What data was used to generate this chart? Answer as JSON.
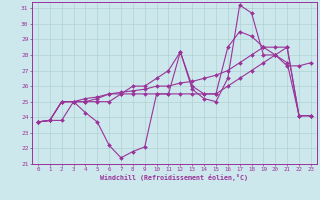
{
  "xlabel": "Windchill (Refroidissement éolien,°C)",
  "xlim": [
    -0.5,
    23.5
  ],
  "ylim": [
    21,
    31.4
  ],
  "xticks": [
    0,
    1,
    2,
    3,
    4,
    5,
    6,
    7,
    8,
    9,
    10,
    11,
    12,
    13,
    14,
    15,
    16,
    17,
    18,
    19,
    20,
    21,
    22,
    23
  ],
  "yticks": [
    21,
    22,
    23,
    24,
    25,
    26,
    27,
    28,
    29,
    30,
    31
  ],
  "bg_color": "#cce8ec",
  "line_color": "#993399",
  "grid_color": "#aacccc",
  "lines": [
    [
      23.7,
      23.8,
      23.8,
      25.0,
      24.3,
      23.7,
      22.2,
      21.4,
      21.8,
      22.1,
      25.5,
      25.5,
      28.2,
      25.8,
      25.2,
      25.0,
      26.5,
      31.2,
      30.7,
      28.0,
      28.0,
      27.3,
      27.3,
      27.5
    ],
    [
      23.7,
      23.8,
      25.0,
      25.0,
      25.0,
      25.2,
      25.5,
      25.5,
      25.5,
      25.5,
      25.5,
      25.5,
      25.5,
      25.5,
      25.5,
      25.5,
      26.0,
      26.5,
      27.0,
      27.5,
      28.0,
      28.5,
      24.1,
      24.1
    ],
    [
      23.7,
      23.8,
      25.0,
      25.0,
      25.2,
      25.3,
      25.5,
      25.6,
      25.7,
      25.8,
      26.0,
      26.0,
      26.2,
      26.3,
      26.5,
      26.7,
      27.0,
      27.5,
      28.0,
      28.5,
      28.5,
      28.5,
      24.1,
      24.1
    ],
    [
      23.7,
      23.8,
      25.0,
      25.0,
      25.0,
      25.0,
      25.0,
      25.5,
      26.0,
      26.0,
      26.5,
      27.0,
      28.2,
      26.0,
      25.5,
      25.5,
      28.5,
      29.5,
      29.2,
      28.5,
      28.0,
      27.5,
      24.1,
      24.1
    ]
  ]
}
